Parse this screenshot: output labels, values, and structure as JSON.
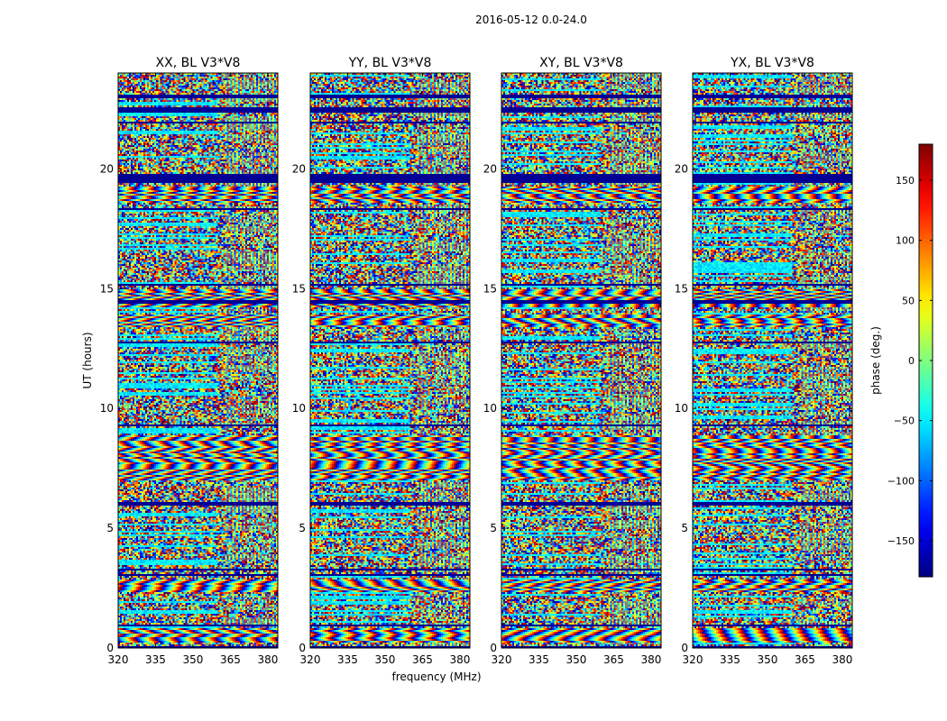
{
  "chart_data": {
    "type": "heatmap",
    "suptitle": "2016-05-12 0.0-24.0",
    "xlabel": "frequency (MHz)",
    "ylabel": "UT (hours)",
    "xlim": [
      320,
      384
    ],
    "ylim": [
      0,
      24
    ],
    "x_ticks": [
      320,
      335,
      350,
      365,
      380
    ],
    "y_ticks": [
      0,
      5,
      10,
      15,
      20
    ],
    "colormap": "jet",
    "colorbar": {
      "label": "phase (deg.)",
      "range": [
        -180,
        180
      ],
      "ticks": [
        150,
        100,
        50,
        0,
        -50,
        -100,
        -150
      ],
      "tick_labels": [
        "150",
        "100",
        "50",
        "0",
        "−50",
        "−100",
        "−150"
      ]
    },
    "panels": [
      {
        "title": "XX, BL V3*V8"
      },
      {
        "title": "YY, BL V3*V8"
      },
      {
        "title": "XY, BL V3*V8"
      },
      {
        "title": "YX, BL V3*V8"
      }
    ],
    "masked_ut_bands": [
      [
        0.0,
        0.06
      ],
      [
        0.9,
        0.97
      ],
      [
        1.9,
        1.96
      ],
      [
        3.0,
        3.05
      ],
      [
        3.2,
        3.25
      ],
      [
        5.9,
        6.05
      ],
      [
        9.25,
        9.3
      ],
      [
        12.7,
        12.8
      ],
      [
        14.4,
        14.5
      ],
      [
        15.1,
        15.2
      ],
      [
        18.3,
        18.35
      ],
      [
        19.4,
        19.8
      ],
      [
        21.9,
        22.0
      ],
      [
        22.35,
        22.6
      ],
      [
        23.0,
        23.1
      ],
      [
        23.4,
        23.45
      ]
    ],
    "coherent_ut_bands": [
      [
        7.0,
        8.9
      ],
      [
        13.4,
        13.9
      ],
      [
        14.2,
        15.0
      ],
      [
        18.6,
        19.3
      ],
      [
        2.3,
        2.8
      ],
      [
        0.2,
        0.8
      ]
    ]
  }
}
